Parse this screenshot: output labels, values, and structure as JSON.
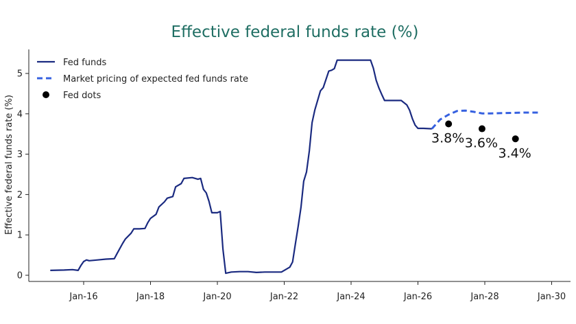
{
  "chart_data": {
    "type": "line",
    "title": "Effective federal funds rate (%)",
    "ylabel": "Effective federal funds rate (%)",
    "xlabel": "",
    "x_ticks": [
      "Jan-16",
      "Jan-18",
      "Jan-20",
      "Jan-22",
      "Jan-24",
      "Jan-26",
      "Jan-28",
      "Jan-30"
    ],
    "y_ticks": [
      "0",
      "1",
      "2",
      "3",
      "4",
      "5"
    ],
    "ylim": [
      0,
      5.5
    ],
    "xlim": [
      "2014-10",
      "2030-03"
    ],
    "grid": false,
    "legend_position": "top-left",
    "series": [
      {
        "name": "Fed funds",
        "style": "solid",
        "color": "#1a2a80",
        "points": [
          [
            "2015-01",
            0.12
          ],
          [
            "2015-06",
            0.13
          ],
          [
            "2015-09",
            0.14
          ],
          [
            "2015-11",
            0.12
          ],
          [
            "2015-12",
            0.24
          ],
          [
            "2016-01",
            0.34
          ],
          [
            "2016-02",
            0.38
          ],
          [
            "2016-03",
            0.36
          ],
          [
            "2016-06",
            0.38
          ],
          [
            "2016-09",
            0.4
          ],
          [
            "2016-12",
            0.41
          ],
          [
            "2017-01",
            0.54
          ],
          [
            "2017-03",
            0.79
          ],
          [
            "2017-04",
            0.9
          ],
          [
            "2017-06",
            1.04
          ],
          [
            "2017-07",
            1.15
          ],
          [
            "2017-09",
            1.15
          ],
          [
            "2017-11",
            1.16
          ],
          [
            "2017-12",
            1.3
          ],
          [
            "2018-01",
            1.41
          ],
          [
            "2018-03",
            1.51
          ],
          [
            "2018-04",
            1.69
          ],
          [
            "2018-06",
            1.82
          ],
          [
            "2018-07",
            1.91
          ],
          [
            "2018-09",
            1.95
          ],
          [
            "2018-10",
            2.19
          ],
          [
            "2018-12",
            2.27
          ],
          [
            "2019-01",
            2.4
          ],
          [
            "2019-04",
            2.42
          ],
          [
            "2019-06",
            2.38
          ],
          [
            "2019-07",
            2.4
          ],
          [
            "2019-08",
            2.13
          ],
          [
            "2019-09",
            2.04
          ],
          [
            "2019-10",
            1.83
          ],
          [
            "2019-11",
            1.55
          ],
          [
            "2020-01",
            1.55
          ],
          [
            "2020-02",
            1.58
          ],
          [
            "2020-03",
            0.65
          ],
          [
            "2020-04",
            0.05
          ],
          [
            "2020-06",
            0.08
          ],
          [
            "2020-09",
            0.09
          ],
          [
            "2020-12",
            0.09
          ],
          [
            "2021-03",
            0.07
          ],
          [
            "2021-06",
            0.08
          ],
          [
            "2021-09",
            0.08
          ],
          [
            "2021-12",
            0.08
          ],
          [
            "2022-03",
            0.2
          ],
          [
            "2022-04",
            0.33
          ],
          [
            "2022-05",
            0.77
          ],
          [
            "2022-06",
            1.21
          ],
          [
            "2022-07",
            1.68
          ],
          [
            "2022-08",
            2.33
          ],
          [
            "2022-09",
            2.56
          ],
          [
            "2022-10",
            3.08
          ],
          [
            "2022-11",
            3.78
          ],
          [
            "2022-12",
            4.1
          ],
          [
            "2023-02",
            4.57
          ],
          [
            "2023-03",
            4.65
          ],
          [
            "2023-05",
            5.06
          ],
          [
            "2023-06",
            5.08
          ],
          [
            "2023-07",
            5.12
          ],
          [
            "2023-08",
            5.33
          ],
          [
            "2024-08",
            5.33
          ],
          [
            "2024-09",
            5.13
          ],
          [
            "2024-10",
            4.83
          ],
          [
            "2024-11",
            4.64
          ],
          [
            "2024-12",
            4.48
          ],
          [
            "2025-01",
            4.33
          ],
          [
            "2025-07",
            4.33
          ],
          [
            "2025-09",
            4.22
          ],
          [
            "2025-10",
            4.09
          ],
          [
            "2025-11",
            3.88
          ],
          [
            "2025-12",
            3.72
          ],
          [
            "2026-01",
            3.64
          ],
          [
            "2026-03",
            3.64
          ],
          [
            "2026-06",
            3.63
          ]
        ]
      },
      {
        "name": "Market pricing of expected fed funds rate",
        "style": "dashed",
        "color": "#3560e0",
        "points": [
          [
            "2026-06",
            3.63
          ],
          [
            "2026-09",
            3.86
          ],
          [
            "2026-12",
            3.98
          ],
          [
            "2027-03",
            4.07
          ],
          [
            "2027-06",
            4.08
          ],
          [
            "2027-09",
            4.05
          ],
          [
            "2027-12",
            4.01
          ],
          [
            "2028-03",
            4.01
          ],
          [
            "2028-09",
            4.02
          ],
          [
            "2029-03",
            4.03
          ],
          [
            "2029-09",
            4.03
          ]
        ]
      },
      {
        "name": "Fed dots",
        "style": "markers",
        "color": "#000000",
        "points": [
          [
            "2026-12",
            3.75,
            "3.8%"
          ],
          [
            "2027-12",
            3.63,
            "3.6%"
          ],
          [
            "2028-12",
            3.38,
            "3.4%"
          ]
        ]
      }
    ]
  }
}
